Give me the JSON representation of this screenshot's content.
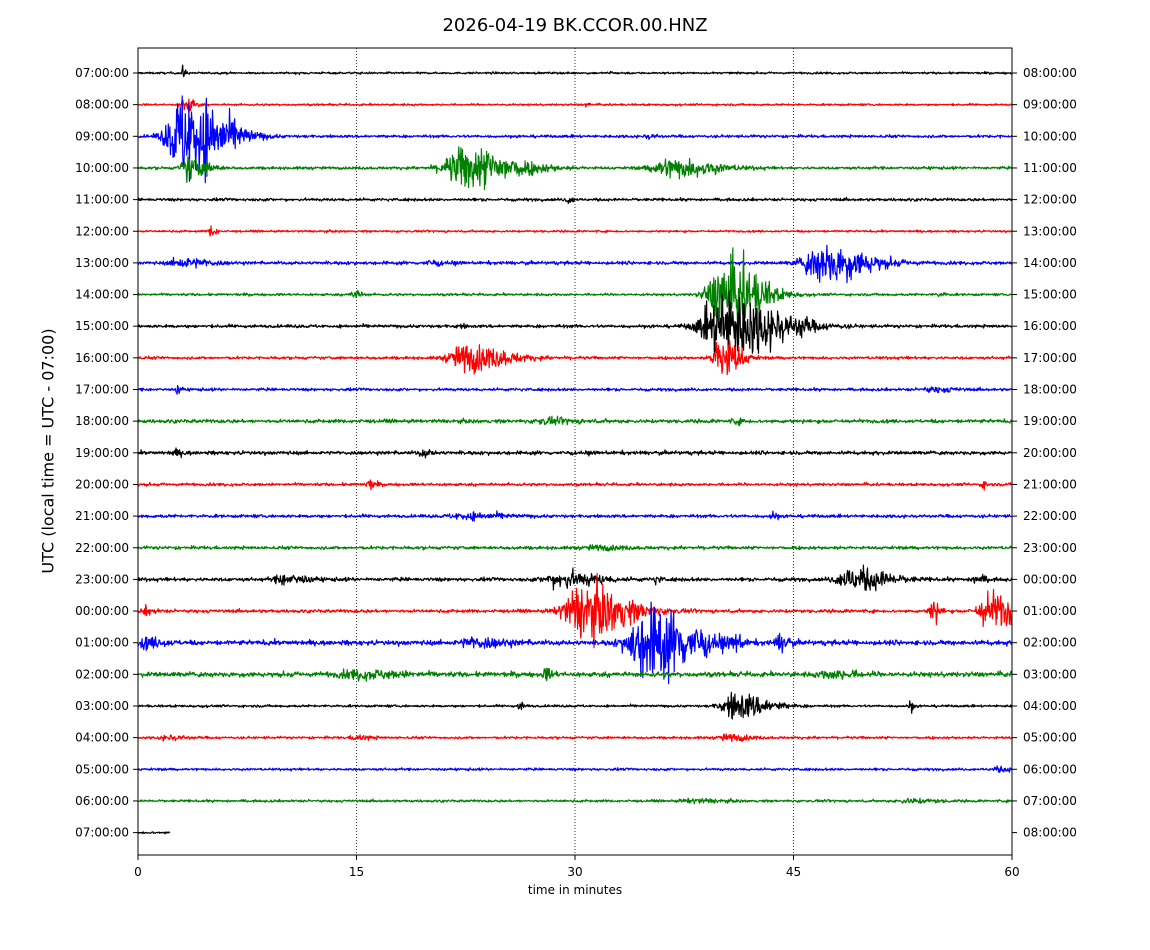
{
  "chart_data": {
    "type": "line",
    "title": "2026-04-19 BK.CCOR.00.HNZ",
    "xlabel": "time in minutes",
    "ylabel": "UTC (local time = UTC - 07:00)",
    "xlim": [
      0,
      60
    ],
    "x_ticks": [
      "0",
      "15",
      "30",
      "45",
      "60"
    ],
    "grid": "vertical dotted at 15, 30, 45",
    "color_cycle": [
      "#000000",
      "#ff0000",
      "#0000ff",
      "#008000"
    ],
    "left_tick_labels": [
      "07:00:00",
      "08:00:00",
      "09:00:00",
      "10:00:00",
      "11:00:00",
      "12:00:00",
      "13:00:00",
      "14:00:00",
      "15:00:00",
      "16:00:00",
      "17:00:00",
      "18:00:00",
      "19:00:00",
      "20:00:00",
      "21:00:00",
      "22:00:00",
      "23:00:00",
      "00:00:00",
      "01:00:00",
      "02:00:00",
      "03:00:00",
      "04:00:00",
      "05:00:00",
      "06:00:00",
      "07:00:00"
    ],
    "right_tick_labels": [
      "08:00:00",
      "09:00:00",
      "10:00:00",
      "11:00:00",
      "12:00:00",
      "13:00:00",
      "14:00:00",
      "15:00:00",
      "16:00:00",
      "17:00:00",
      "18:00:00",
      "19:00:00",
      "20:00:00",
      "21:00:00",
      "22:00:00",
      "23:00:00",
      "00:00:00",
      "01:00:00",
      "02:00:00",
      "03:00:00",
      "04:00:00",
      "05:00:00",
      "06:00:00",
      "07:00:00",
      "08:00:00"
    ],
    "series": [
      {
        "label": "07:00:00",
        "noise": 0.25,
        "events": [
          {
            "t": 3.0,
            "amp": 1.8,
            "dur": 0.2
          },
          {
            "t": 32.5,
            "amp": 0.6,
            "dur": 0.2
          }
        ]
      },
      {
        "label": "08:00:00",
        "noise": 0.25,
        "events": [
          {
            "t": 3.2,
            "amp": 2.5,
            "dur": 0.5
          },
          {
            "t": 30.8,
            "amp": 0.6,
            "dur": 0.2
          }
        ]
      },
      {
        "label": "09:00:00",
        "noise": 0.35,
        "events": [
          {
            "t": 3.2,
            "amp": 12.0,
            "dur": 2.2
          },
          {
            "t": 35.0,
            "amp": 0.5,
            "dur": 0.5
          }
        ]
      },
      {
        "label": "10:00:00",
        "noise": 0.35,
        "events": [
          {
            "t": 3.5,
            "amp": 3.0,
            "dur": 1.0
          },
          {
            "t": 22.5,
            "amp": 5.5,
            "dur": 2.8
          },
          {
            "t": 36.5,
            "amp": 2.5,
            "dur": 2.5
          }
        ]
      },
      {
        "label": "11:00:00",
        "noise": 0.35,
        "events": [
          {
            "t": 29.5,
            "amp": 0.9,
            "dur": 0.3
          }
        ]
      },
      {
        "label": "12:00:00",
        "noise": 0.25,
        "events": [
          {
            "t": 5.0,
            "amp": 1.5,
            "dur": 0.3
          }
        ]
      },
      {
        "label": "13:00:00",
        "noise": 0.4,
        "events": [
          {
            "t": 3.0,
            "amp": 1.2,
            "dur": 1.5
          },
          {
            "t": 20.0,
            "amp": 0.5,
            "dur": 0.8
          },
          {
            "t": 47.0,
            "amp": 5.0,
            "dur": 2.5
          }
        ]
      },
      {
        "label": "14:00:00",
        "noise": 0.3,
        "events": [
          {
            "t": 14.8,
            "amp": 1.2,
            "dur": 0.4
          },
          {
            "t": 40.2,
            "amp": 9.0,
            "dur": 2.0
          },
          {
            "t": 41.5,
            "amp": 0.6,
            "dur": 1.5
          },
          {
            "t": 55.0,
            "amp": 0.5,
            "dur": 0.4
          }
        ]
      },
      {
        "label": "15:00:00",
        "noise": 0.4,
        "events": [
          {
            "t": 40.3,
            "amp": 9.0,
            "dur": 3.0
          },
          {
            "t": 45.5,
            "amp": 1.0,
            "dur": 0.4
          },
          {
            "t": 22.0,
            "amp": 0.4,
            "dur": 0.4
          }
        ]
      },
      {
        "label": "16:00:00",
        "noise": 0.35,
        "events": [
          {
            "t": 40.0,
            "amp": 6.0,
            "dur": 1.0
          },
          {
            "t": 22.5,
            "amp": 3.5,
            "dur": 2.2
          }
        ]
      },
      {
        "label": "17:00:00",
        "noise": 0.35,
        "events": [
          {
            "t": 2.7,
            "amp": 1.2,
            "dur": 0.2
          },
          {
            "t": 54.5,
            "amp": 0.6,
            "dur": 1.2
          }
        ]
      },
      {
        "label": "18:00:00",
        "noise": 0.45,
        "events": [
          {
            "t": 28.0,
            "amp": 0.6,
            "dur": 1.5
          },
          {
            "t": 41.0,
            "amp": 0.5,
            "dur": 0.5
          }
        ]
      },
      {
        "label": "19:00:00",
        "noise": 0.45,
        "events": [
          {
            "t": 2.5,
            "amp": 0.6,
            "dur": 0.5
          },
          {
            "t": 19.5,
            "amp": 0.8,
            "dur": 0.5
          }
        ]
      },
      {
        "label": "20:00:00",
        "noise": 0.35,
        "events": [
          {
            "t": 15.8,
            "amp": 1.2,
            "dur": 0.4
          },
          {
            "t": 58.0,
            "amp": 0.8,
            "dur": 0.3
          }
        ]
      },
      {
        "label": "21:00:00",
        "noise": 0.4,
        "events": [
          {
            "t": 22.5,
            "amp": 0.8,
            "dur": 2.0
          },
          {
            "t": 43.5,
            "amp": 1.0,
            "dur": 0.3
          }
        ]
      },
      {
        "label": "22:00:00",
        "noise": 0.4,
        "events": [
          {
            "t": 31.5,
            "amp": 0.5,
            "dur": 1.5
          }
        ]
      },
      {
        "label": "23:00:00",
        "noise": 0.45,
        "events": [
          {
            "t": 10.0,
            "amp": 1.2,
            "dur": 1.2
          },
          {
            "t": 29.0,
            "amp": 2.0,
            "dur": 2.0
          },
          {
            "t": 49.0,
            "amp": 3.0,
            "dur": 2.0
          },
          {
            "t": 57.5,
            "amp": 1.2,
            "dur": 0.5
          },
          {
            "t": 35.5,
            "amp": 0.9,
            "dur": 0.3
          }
        ]
      },
      {
        "label": "00:00:00",
        "noise": 0.4,
        "events": [
          {
            "t": 0.5,
            "amp": 1.0,
            "dur": 0.5
          },
          {
            "t": 30.5,
            "amp": 7.0,
            "dur": 2.5
          },
          {
            "t": 54.5,
            "amp": 3.0,
            "dur": 0.4
          },
          {
            "t": 58.5,
            "amp": 5.0,
            "dur": 1.5
          }
        ]
      },
      {
        "label": "01:00:00",
        "noise": 0.6,
        "events": [
          {
            "t": 0.5,
            "amp": 1.2,
            "dur": 1.0
          },
          {
            "t": 35.0,
            "amp": 10.0,
            "dur": 2.5
          },
          {
            "t": 41.0,
            "amp": 2.5,
            "dur": 0.3
          },
          {
            "t": 44.0,
            "amp": 2.0,
            "dur": 0.5
          },
          {
            "t": 23.0,
            "amp": 1.2,
            "dur": 1.8
          }
        ]
      },
      {
        "label": "02:00:00",
        "noise": 0.6,
        "events": [
          {
            "t": 28.0,
            "amp": 1.5,
            "dur": 0.4
          },
          {
            "t": 15.0,
            "amp": 0.9,
            "dur": 2.5
          },
          {
            "t": 47.5,
            "amp": 0.9,
            "dur": 1.5
          }
        ]
      },
      {
        "label": "03:00:00",
        "noise": 0.3,
        "events": [
          {
            "t": 26.2,
            "amp": 1.0,
            "dur": 0.3
          },
          {
            "t": 41.0,
            "amp": 3.5,
            "dur": 1.8
          },
          {
            "t": 53.0,
            "amp": 1.5,
            "dur": 0.2
          }
        ]
      },
      {
        "label": "04:00:00",
        "noise": 0.3,
        "events": [
          {
            "t": 2.0,
            "amp": 0.6,
            "dur": 1.0
          },
          {
            "t": 15.0,
            "amp": 0.6,
            "dur": 0.8
          },
          {
            "t": 40.5,
            "amp": 0.8,
            "dur": 1.2
          }
        ]
      },
      {
        "label": "05:00:00",
        "noise": 0.3,
        "events": [
          {
            "t": 59.0,
            "amp": 0.5,
            "dur": 1.0
          }
        ]
      },
      {
        "label": "06:00:00",
        "noise": 0.3,
        "events": [
          {
            "t": 38.0,
            "amp": 0.5,
            "dur": 1.5
          },
          {
            "t": 53.0,
            "amp": 0.5,
            "dur": 1.5
          }
        ]
      },
      {
        "label": "07:00:00",
        "noise": 0.3,
        "end_t": 2.2,
        "events": []
      }
    ]
  }
}
